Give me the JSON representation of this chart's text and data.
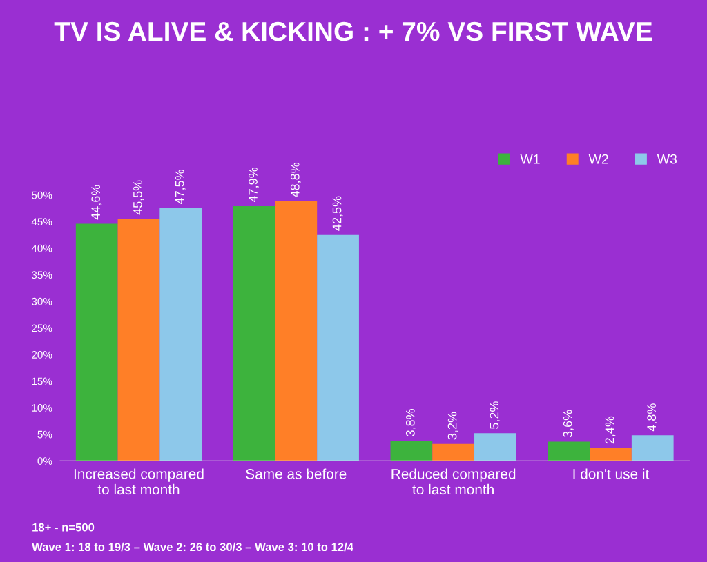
{
  "chart_data": {
    "type": "bar",
    "title": "TV IS ALIVE & KICKING : + 7% VS FIRST WAVE",
    "categories": [
      "Increased compared\nto last month",
      "Same as before",
      "Reduced compared\nto last month",
      "I don't use it"
    ],
    "series": [
      {
        "name": "W1",
        "color": "#3db33d",
        "values": [
          44.6,
          47.9,
          3.8,
          3.6
        ],
        "value_labels": [
          "44,6%",
          "47,9%",
          "3,8%",
          "3,6%"
        ]
      },
      {
        "name": "W2",
        "color": "#ff7f27",
        "values": [
          45.5,
          48.8,
          3.2,
          2.4
        ],
        "value_labels": [
          "45,5%",
          "48,8%",
          "3,2%",
          "2,4%"
        ]
      },
      {
        "name": "W3",
        "color": "#8dc8ea",
        "values": [
          47.5,
          42.5,
          5.2,
          4.8
        ],
        "value_labels": [
          "47,5%",
          "42,5%",
          "5,2%",
          "4,8%"
        ]
      }
    ],
    "ylim": [
      0,
      50
    ],
    "yticks": [
      {
        "value": 0,
        "label": "0%"
      },
      {
        "value": 5,
        "label": "5%"
      },
      {
        "value": 10,
        "label": "10%"
      },
      {
        "value": 15,
        "label": "15%"
      },
      {
        "value": 20,
        "label": "20%"
      },
      {
        "value": 25,
        "label": "25%"
      },
      {
        "value": 30,
        "label": "30%"
      },
      {
        "value": 35,
        "label": "35%"
      },
      {
        "value": 40,
        "label": "40%"
      },
      {
        "value": 45,
        "label": "45%"
      },
      {
        "value": 50,
        "label": "50%"
      }
    ],
    "grid": false,
    "legend": "top right",
    "annotations": [
      "18+ - n=500",
      "Wave 1: 18 to 19/3 – Wave 2: 26 to 30/3 – Wave 3: 10 to 12/4"
    ]
  }
}
